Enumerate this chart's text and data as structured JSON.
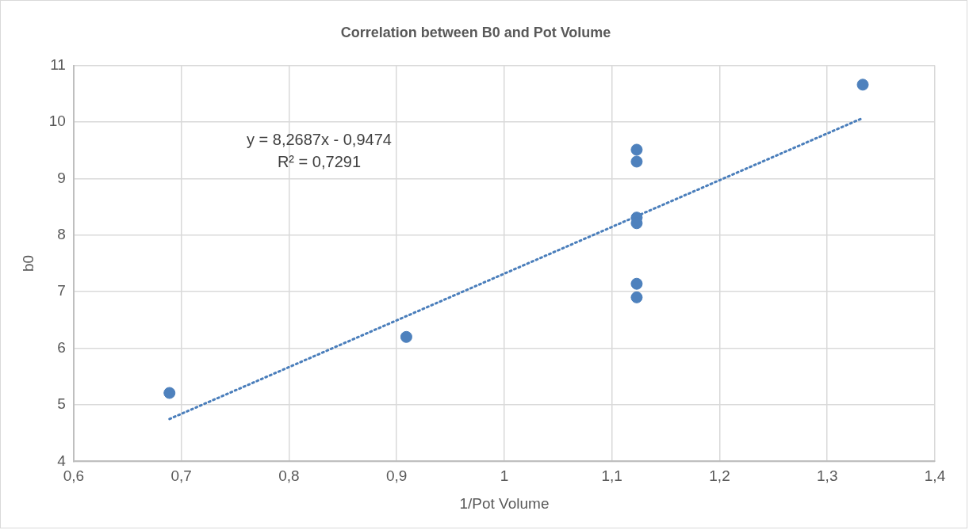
{
  "chart_data": {
    "type": "scatter",
    "title": "Correlation between B0 and Pot Volume",
    "xlabel": "1/Pot Volume",
    "ylabel": "b0",
    "series": [
      {
        "color": "#4e81bd",
        "marker": "circle",
        "x": [
          0.689,
          0.909,
          1.123,
          1.123,
          1.123,
          1.123,
          1.123,
          1.123,
          1.333
        ],
        "values": [
          5.21,
          6.2,
          9.51,
          9.3,
          8.31,
          8.21,
          7.14,
          6.9,
          10.66
        ]
      },
      {
        "type": "line",
        "color": "#4a7ebb",
        "marker": "none",
        "line_style": "dotted",
        "x": [
          0.689,
          1.333
        ],
        "values": [
          4.75,
          10.07
        ]
      }
    ],
    "xlim": [
      0.6,
      1.4
    ],
    "xticks": [
      {
        "value": 0.6,
        "label": "0,6"
      },
      {
        "value": 0.7,
        "label": "0,7"
      },
      {
        "value": 0.8,
        "label": "0,8"
      },
      {
        "value": 0.9,
        "label": "0,9"
      },
      {
        "value": 1,
        "label": "1"
      },
      {
        "value": 1.1,
        "label": "1,1"
      },
      {
        "value": 1.2,
        "label": "1,2"
      },
      {
        "value": 1.3,
        "label": "1,3"
      },
      {
        "value": 1.4,
        "label": "1,4"
      }
    ],
    "ylim": [
      4,
      11
    ],
    "yticks": [
      4,
      5,
      6,
      7,
      8,
      9,
      10,
      11
    ],
    "annotations": [
      "y = 8,2687x - 0,9474",
      "R² = 0,7291"
    ],
    "grid": true,
    "legend": false
  }
}
